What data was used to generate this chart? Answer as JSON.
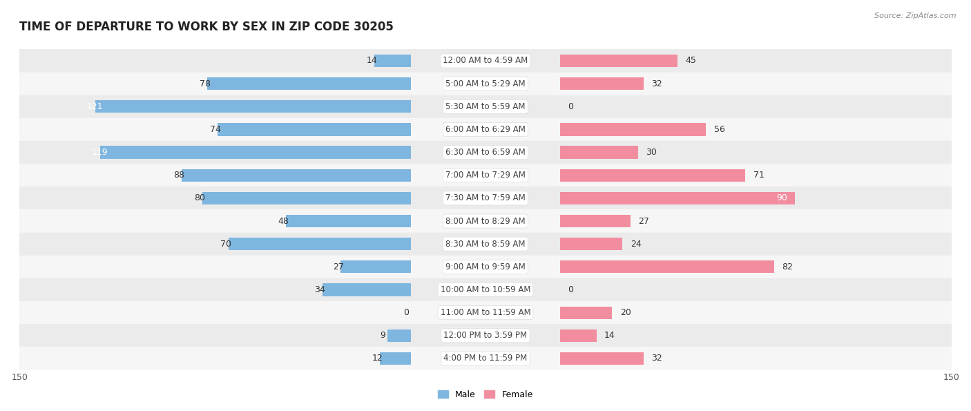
{
  "title": "TIME OF DEPARTURE TO WORK BY SEX IN ZIP CODE 30205",
  "source": "Source: ZipAtlas.com",
  "categories": [
    "12:00 AM to 4:59 AM",
    "5:00 AM to 5:29 AM",
    "5:30 AM to 5:59 AM",
    "6:00 AM to 6:29 AM",
    "6:30 AM to 6:59 AM",
    "7:00 AM to 7:29 AM",
    "7:30 AM to 7:59 AM",
    "8:00 AM to 8:29 AM",
    "8:30 AM to 8:59 AM",
    "9:00 AM to 9:59 AM",
    "10:00 AM to 10:59 AM",
    "11:00 AM to 11:59 AM",
    "12:00 PM to 3:59 PM",
    "4:00 PM to 11:59 PM"
  ],
  "male": [
    14,
    78,
    121,
    74,
    119,
    88,
    80,
    48,
    70,
    27,
    34,
    0,
    9,
    12
  ],
  "female": [
    45,
    32,
    0,
    56,
    30,
    71,
    90,
    27,
    24,
    82,
    0,
    20,
    14,
    32
  ],
  "male_color": "#7EB6E0",
  "female_color": "#F28DA0",
  "male_color_inside": "#6AACD8",
  "female_color_inside": "#EF7A8D",
  "xlim": 150,
  "bar_height": 0.55,
  "background_color": "#F2F2F2",
  "row_bg_even": "#EBEBEB",
  "row_bg_odd": "#F6F6F6",
  "title_fontsize": 12,
  "label_fontsize": 9,
  "tick_fontsize": 9,
  "category_fontsize": 8.5,
  "legend_fontsize": 9,
  "center_label_bg": "#FFFFFF",
  "label_color_dark": "#333333",
  "label_color_white": "#FFFFFF"
}
